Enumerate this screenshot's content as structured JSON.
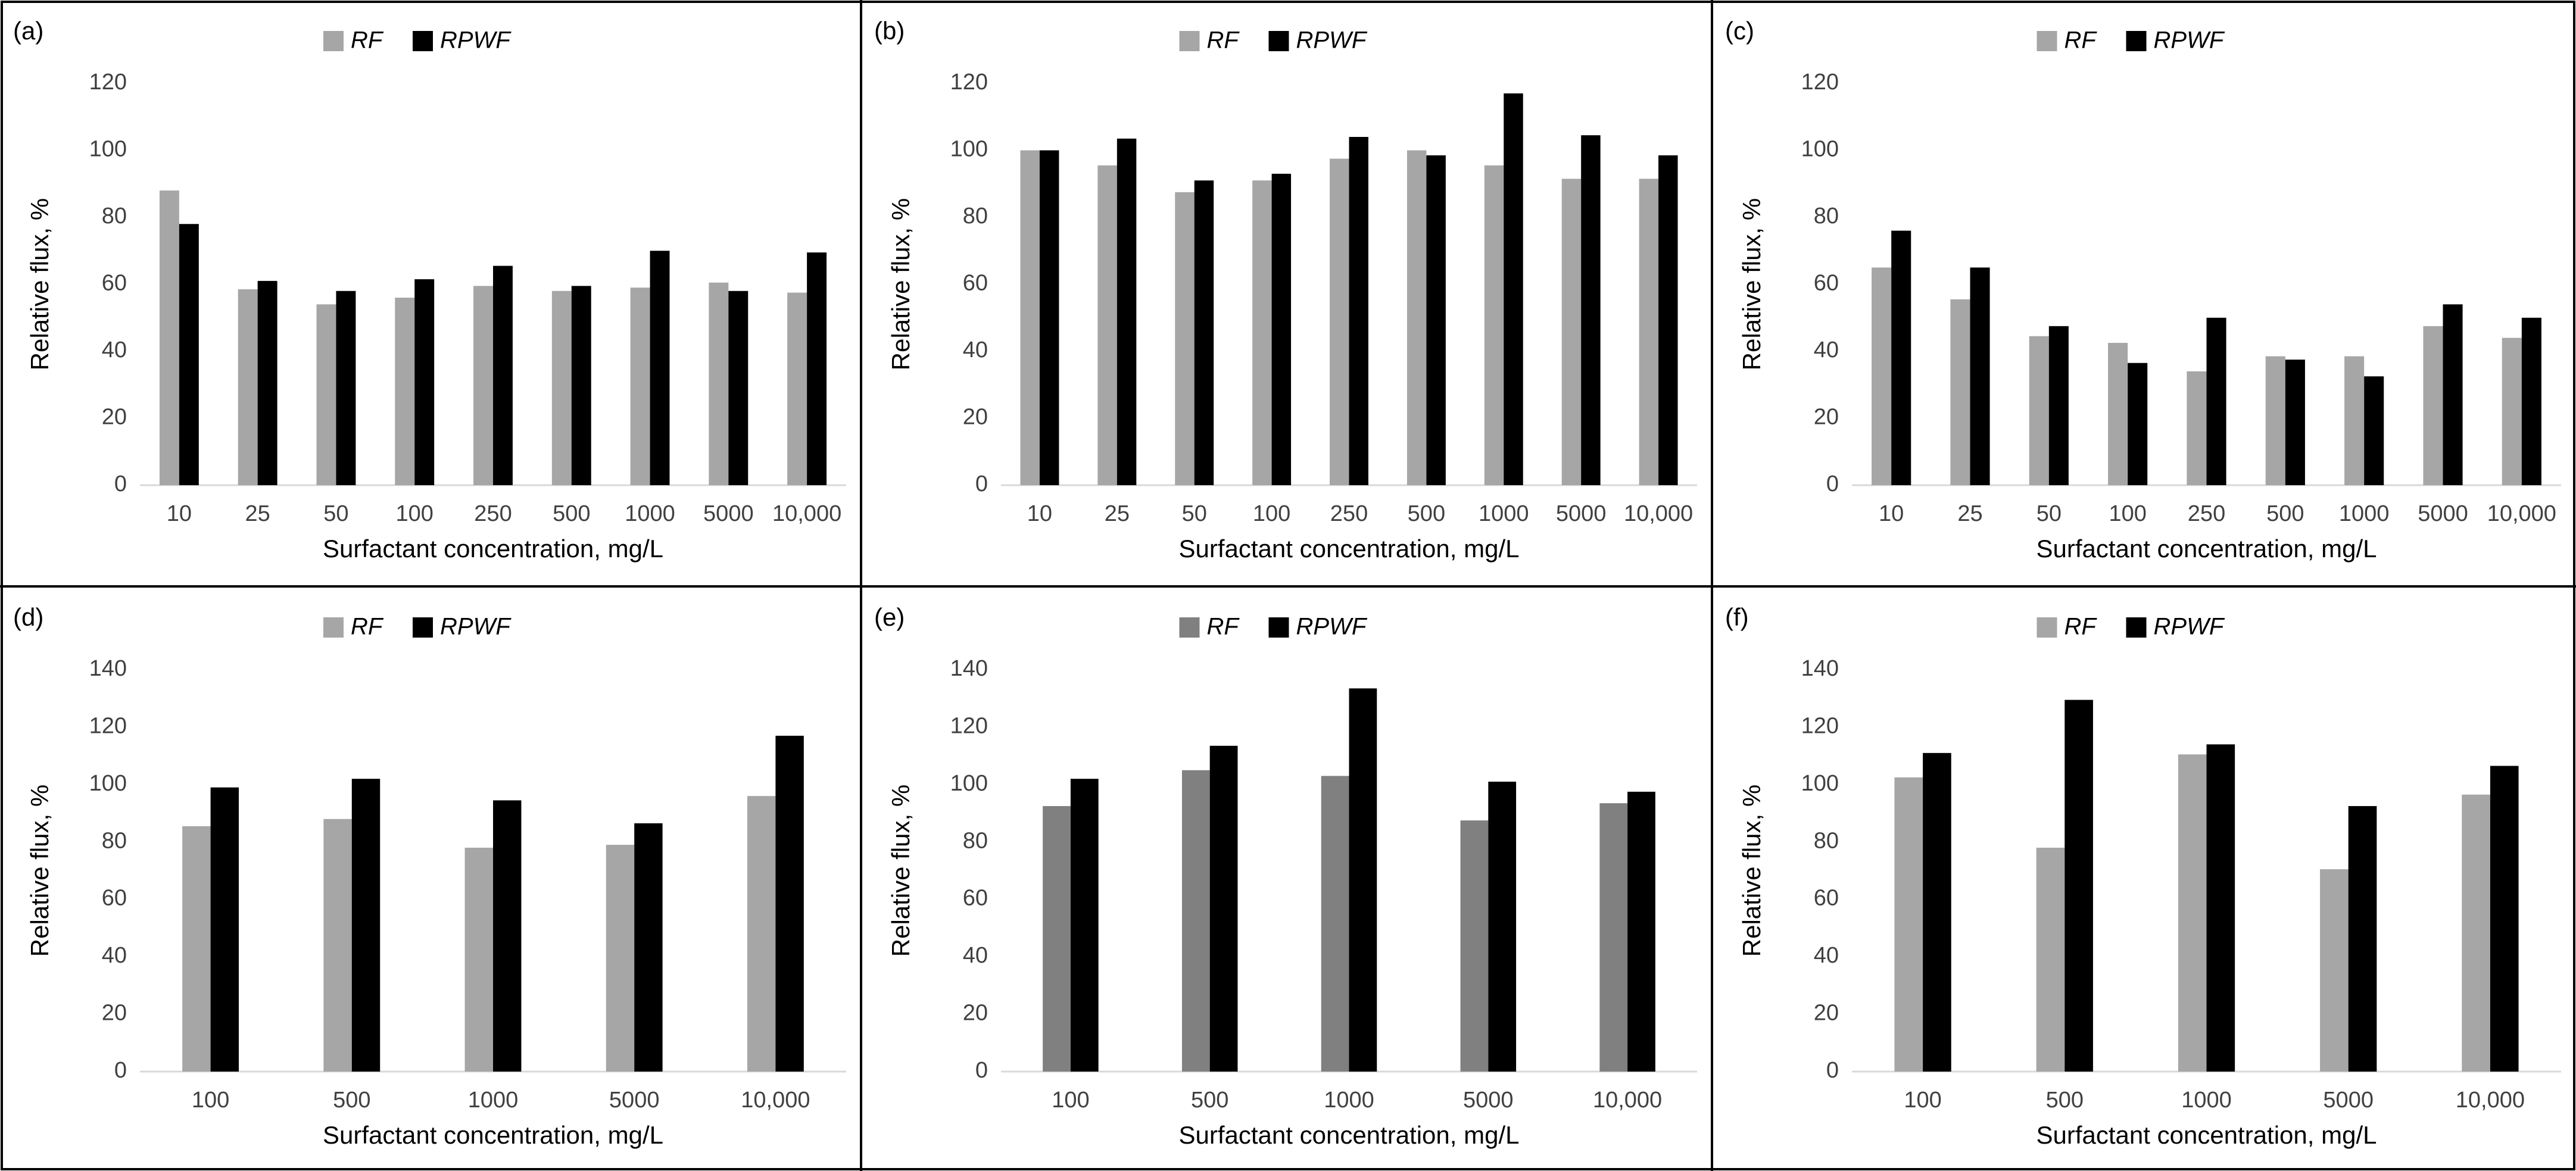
{
  "chart_data": [
    {
      "type": "bar",
      "panel_label": "(a)",
      "x_label": "Surfactant concentration, mg/L",
      "y_label": "Relative flux, %",
      "categories": [
        "10",
        "25",
        "50",
        "100",
        "250",
        "500",
        "1000",
        "5000",
        "10,000"
      ],
      "series": [
        {
          "name": "RF",
          "color": "#a6a6a6",
          "values": [
            88,
            58.5,
            54,
            56,
            59.5,
            58,
            59,
            60.5,
            57.5
          ]
        },
        {
          "name": "RPWF",
          "color": "#000000",
          "values": [
            78,
            61,
            58,
            61.5,
            65.5,
            59.5,
            70,
            58,
            69.5
          ]
        }
      ],
      "ylim": [
        0,
        120
      ],
      "yticks": [
        0,
        20,
        40,
        60,
        80,
        100,
        120
      ]
    },
    {
      "type": "bar",
      "panel_label": "(b)",
      "x_label": "Surfactant concentration, mg/L",
      "y_label": "Relative flux, %",
      "categories": [
        "10",
        "25",
        "50",
        "100",
        "250",
        "500",
        "1000",
        "5000",
        "10,000"
      ],
      "series": [
        {
          "name": "RF",
          "color": "#a6a6a6",
          "values": [
            100,
            95.5,
            87.5,
            91,
            97.5,
            100,
            95.5,
            91.5,
            91.5
          ]
        },
        {
          "name": "RPWF",
          "color": "#000000",
          "values": [
            100,
            103.5,
            91,
            93,
            104,
            98.5,
            117,
            104.5,
            98.5
          ]
        }
      ],
      "ylim": [
        0,
        120
      ],
      "yticks": [
        0,
        20,
        40,
        60,
        80,
        100,
        120
      ]
    },
    {
      "type": "bar",
      "panel_label": "(c)",
      "x_label": "Surfactant concentration, mg/L",
      "y_label": "Relative flux, %",
      "categories": [
        "10",
        "25",
        "50",
        "100",
        "250",
        "500",
        "1000",
        "5000",
        "10,000"
      ],
      "series": [
        {
          "name": "RF",
          "color": "#a6a6a6",
          "values": [
            65,
            55.5,
            44.5,
            42.5,
            34,
            38.5,
            38.5,
            47.5,
            44
          ]
        },
        {
          "name": "RPWF",
          "color": "#000000",
          "values": [
            76,
            65,
            47.5,
            36.5,
            50,
            37.5,
            32.5,
            54,
            50
          ]
        }
      ],
      "ylim": [
        0,
        120
      ],
      "yticks": [
        0,
        20,
        40,
        60,
        80,
        100,
        120
      ]
    },
    {
      "type": "bar",
      "panel_label": "(d)",
      "x_label": "Surfactant concentration, mg/L",
      "y_label": "Relative flux, %",
      "categories": [
        "100",
        "500",
        "1000",
        "5000",
        "10,000"
      ],
      "series": [
        {
          "name": "RF",
          "color": "#a6a6a6",
          "values": [
            85.5,
            88,
            78,
            79,
            96
          ]
        },
        {
          "name": "RPWF",
          "color": "#000000",
          "values": [
            99,
            102,
            94.5,
            86.5,
            117
          ]
        }
      ],
      "ylim": [
        0,
        140
      ],
      "yticks": [
        0,
        20,
        40,
        60,
        80,
        100,
        120,
        140
      ]
    },
    {
      "type": "bar",
      "panel_label": "(e)",
      "x_label": "Surfactant concentration, mg/L",
      "y_label": "Relative flux, %",
      "categories": [
        "100",
        "500",
        "1000",
        "5000",
        "10,000"
      ],
      "series": [
        {
          "name": "RF",
          "color": "#808080",
          "values": [
            92.5,
            105,
            103,
            87.5,
            93.5
          ]
        },
        {
          "name": "RPWF",
          "color": "#000000",
          "values": [
            102,
            113.5,
            133.5,
            101,
            97.5
          ]
        }
      ],
      "ylim": [
        0,
        140
      ],
      "yticks": [
        0,
        20,
        40,
        60,
        80,
        100,
        120,
        140
      ]
    },
    {
      "type": "bar",
      "panel_label": "(f)",
      "x_label": "Surfactant concentration, mg/L",
      "y_label": "Relative flux, %",
      "categories": [
        "100",
        "500",
        "1000",
        "5000",
        "10,000"
      ],
      "series": [
        {
          "name": "RF",
          "color": "#a6a6a6",
          "values": [
            102.5,
            78,
            110.5,
            70.5,
            96.5
          ]
        },
        {
          "name": "RPWF",
          "color": "#000000",
          "values": [
            111,
            129.5,
            114,
            92.5,
            106.5
          ]
        }
      ],
      "ylim": [
        0,
        140
      ],
      "yticks": [
        0,
        20,
        40,
        60,
        80,
        100,
        120,
        140
      ]
    }
  ]
}
